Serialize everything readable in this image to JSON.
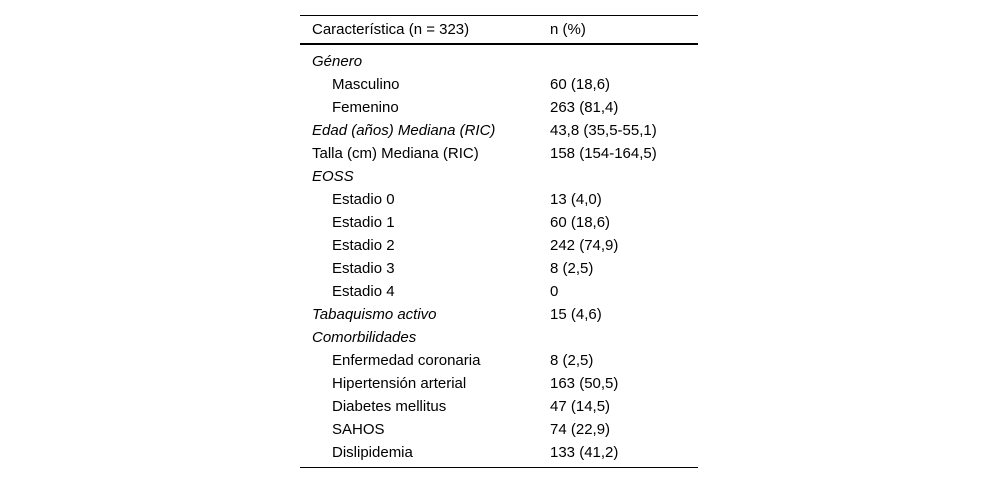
{
  "table": {
    "header": {
      "col1": "Característica (n = 323)",
      "col2": "n (%)"
    },
    "rows": [
      {
        "label": "Género",
        "value": "",
        "italic": true,
        "indent": false
      },
      {
        "label": "Masculino",
        "value": "60 (18,6)",
        "italic": false,
        "indent": true
      },
      {
        "label": "Femenino",
        "value": "263 (81,4)",
        "italic": false,
        "indent": true
      },
      {
        "label": "Edad (años) Mediana (RIC)",
        "value": "43,8 (35,5-55,1)",
        "italic": true,
        "indent": false
      },
      {
        "label": "Talla (cm) Mediana (RIC)",
        "value": "158 (154-164,5)",
        "italic": false,
        "indent": false
      },
      {
        "label": "EOSS",
        "value": "",
        "italic": true,
        "indent": false
      },
      {
        "label": "Estadio 0",
        "value": "13 (4,0)",
        "italic": false,
        "indent": true
      },
      {
        "label": "Estadio 1",
        "value": "60 (18,6)",
        "italic": false,
        "indent": true
      },
      {
        "label": "Estadio 2",
        "value": "242 (74,9)",
        "italic": false,
        "indent": true
      },
      {
        "label": "Estadio 3",
        "value": "8 (2,5)",
        "italic": false,
        "indent": true
      },
      {
        "label": "Estadio 4",
        "value": "0",
        "italic": false,
        "indent": true
      },
      {
        "label": "Tabaquismo activo",
        "value": "15 (4,6)",
        "italic": true,
        "indent": false
      },
      {
        "label": "Comorbilidades",
        "value": "",
        "italic": true,
        "indent": false
      },
      {
        "label": "Enfermedad coronaria",
        "value": "8 (2,5)",
        "italic": false,
        "indent": true
      },
      {
        "label": "Hipertensión arterial",
        "value": "163 (50,5)",
        "italic": false,
        "indent": true
      },
      {
        "label": "Diabetes mellitus",
        "value": "47 (14,5)",
        "italic": false,
        "indent": true
      },
      {
        "label": "SAHOS",
        "value": "74 (22,9)",
        "italic": false,
        "indent": true
      },
      {
        "label": "Dislipidemia",
        "value": "133 (41,2)",
        "italic": false,
        "indent": true
      }
    ],
    "colors": {
      "text": "#000000",
      "rule": "#000000",
      "background": "#ffffff"
    }
  }
}
